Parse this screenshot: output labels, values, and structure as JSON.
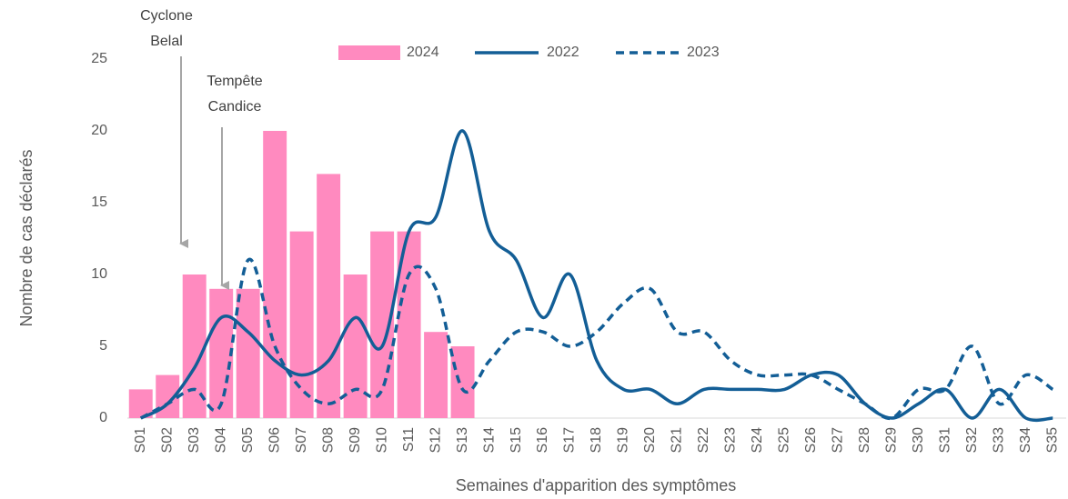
{
  "chart_data": {
    "type": "combo",
    "x_label": "Semaines d'apparition des symptômes",
    "y_label": "Nombre de cas déclarés",
    "categories": [
      "S01",
      "S02",
      "S03",
      "S04",
      "S05",
      "S06",
      "S07",
      "S08",
      "S09",
      "S10",
      "S11",
      "S12",
      "S13",
      "S14",
      "S15",
      "S16",
      "S17",
      "S18",
      "S19",
      "S20",
      "S21",
      "S22",
      "S23",
      "S24",
      "S25",
      "S26",
      "S27",
      "S28",
      "S29",
      "S30",
      "S31",
      "S32",
      "S33",
      "S34",
      "S35"
    ],
    "ylim": [
      0,
      25
    ],
    "yticks": [
      0,
      5,
      10,
      15,
      20,
      25
    ],
    "grid": false,
    "series": [
      {
        "name": "2024",
        "type": "bar",
        "color": "#ff8abf",
        "values": [
          2,
          3,
          10,
          9,
          9,
          20,
          13,
          17,
          10,
          13,
          13,
          6,
          5,
          null,
          null,
          null,
          null,
          null,
          null,
          null,
          null,
          null,
          null,
          null,
          null,
          null,
          null,
          null,
          null,
          null,
          null,
          null,
          null,
          null,
          null
        ]
      },
      {
        "name": "2022",
        "type": "line",
        "style": "solid",
        "color": "#135e96",
        "values": [
          0,
          1,
          3.5,
          7,
          6,
          4,
          3,
          4,
          7,
          5,
          13,
          14,
          20,
          13,
          11,
          7,
          10,
          4,
          2,
          2,
          1,
          2,
          2,
          2,
          2,
          3,
          3,
          1,
          0,
          1,
          2,
          0,
          2,
          0,
          0
        ]
      },
      {
        "name": "2023",
        "type": "line",
        "style": "dashed",
        "color": "#135e96",
        "values": [
          0,
          1,
          2,
          1,
          11,
          5,
          2,
          1,
          2,
          2,
          10,
          9,
          2,
          4,
          6,
          6,
          5,
          6,
          8,
          9,
          6,
          6,
          4,
          3,
          3,
          3,
          2,
          1,
          0,
          2,
          2,
          5,
          1,
          3,
          2
        ]
      }
    ],
    "annotations": [
      {
        "lines": [
          "Cyclone",
          "Belal"
        ]
      },
      {
        "lines": [
          "Tempête",
          "Candice"
        ]
      }
    ]
  }
}
